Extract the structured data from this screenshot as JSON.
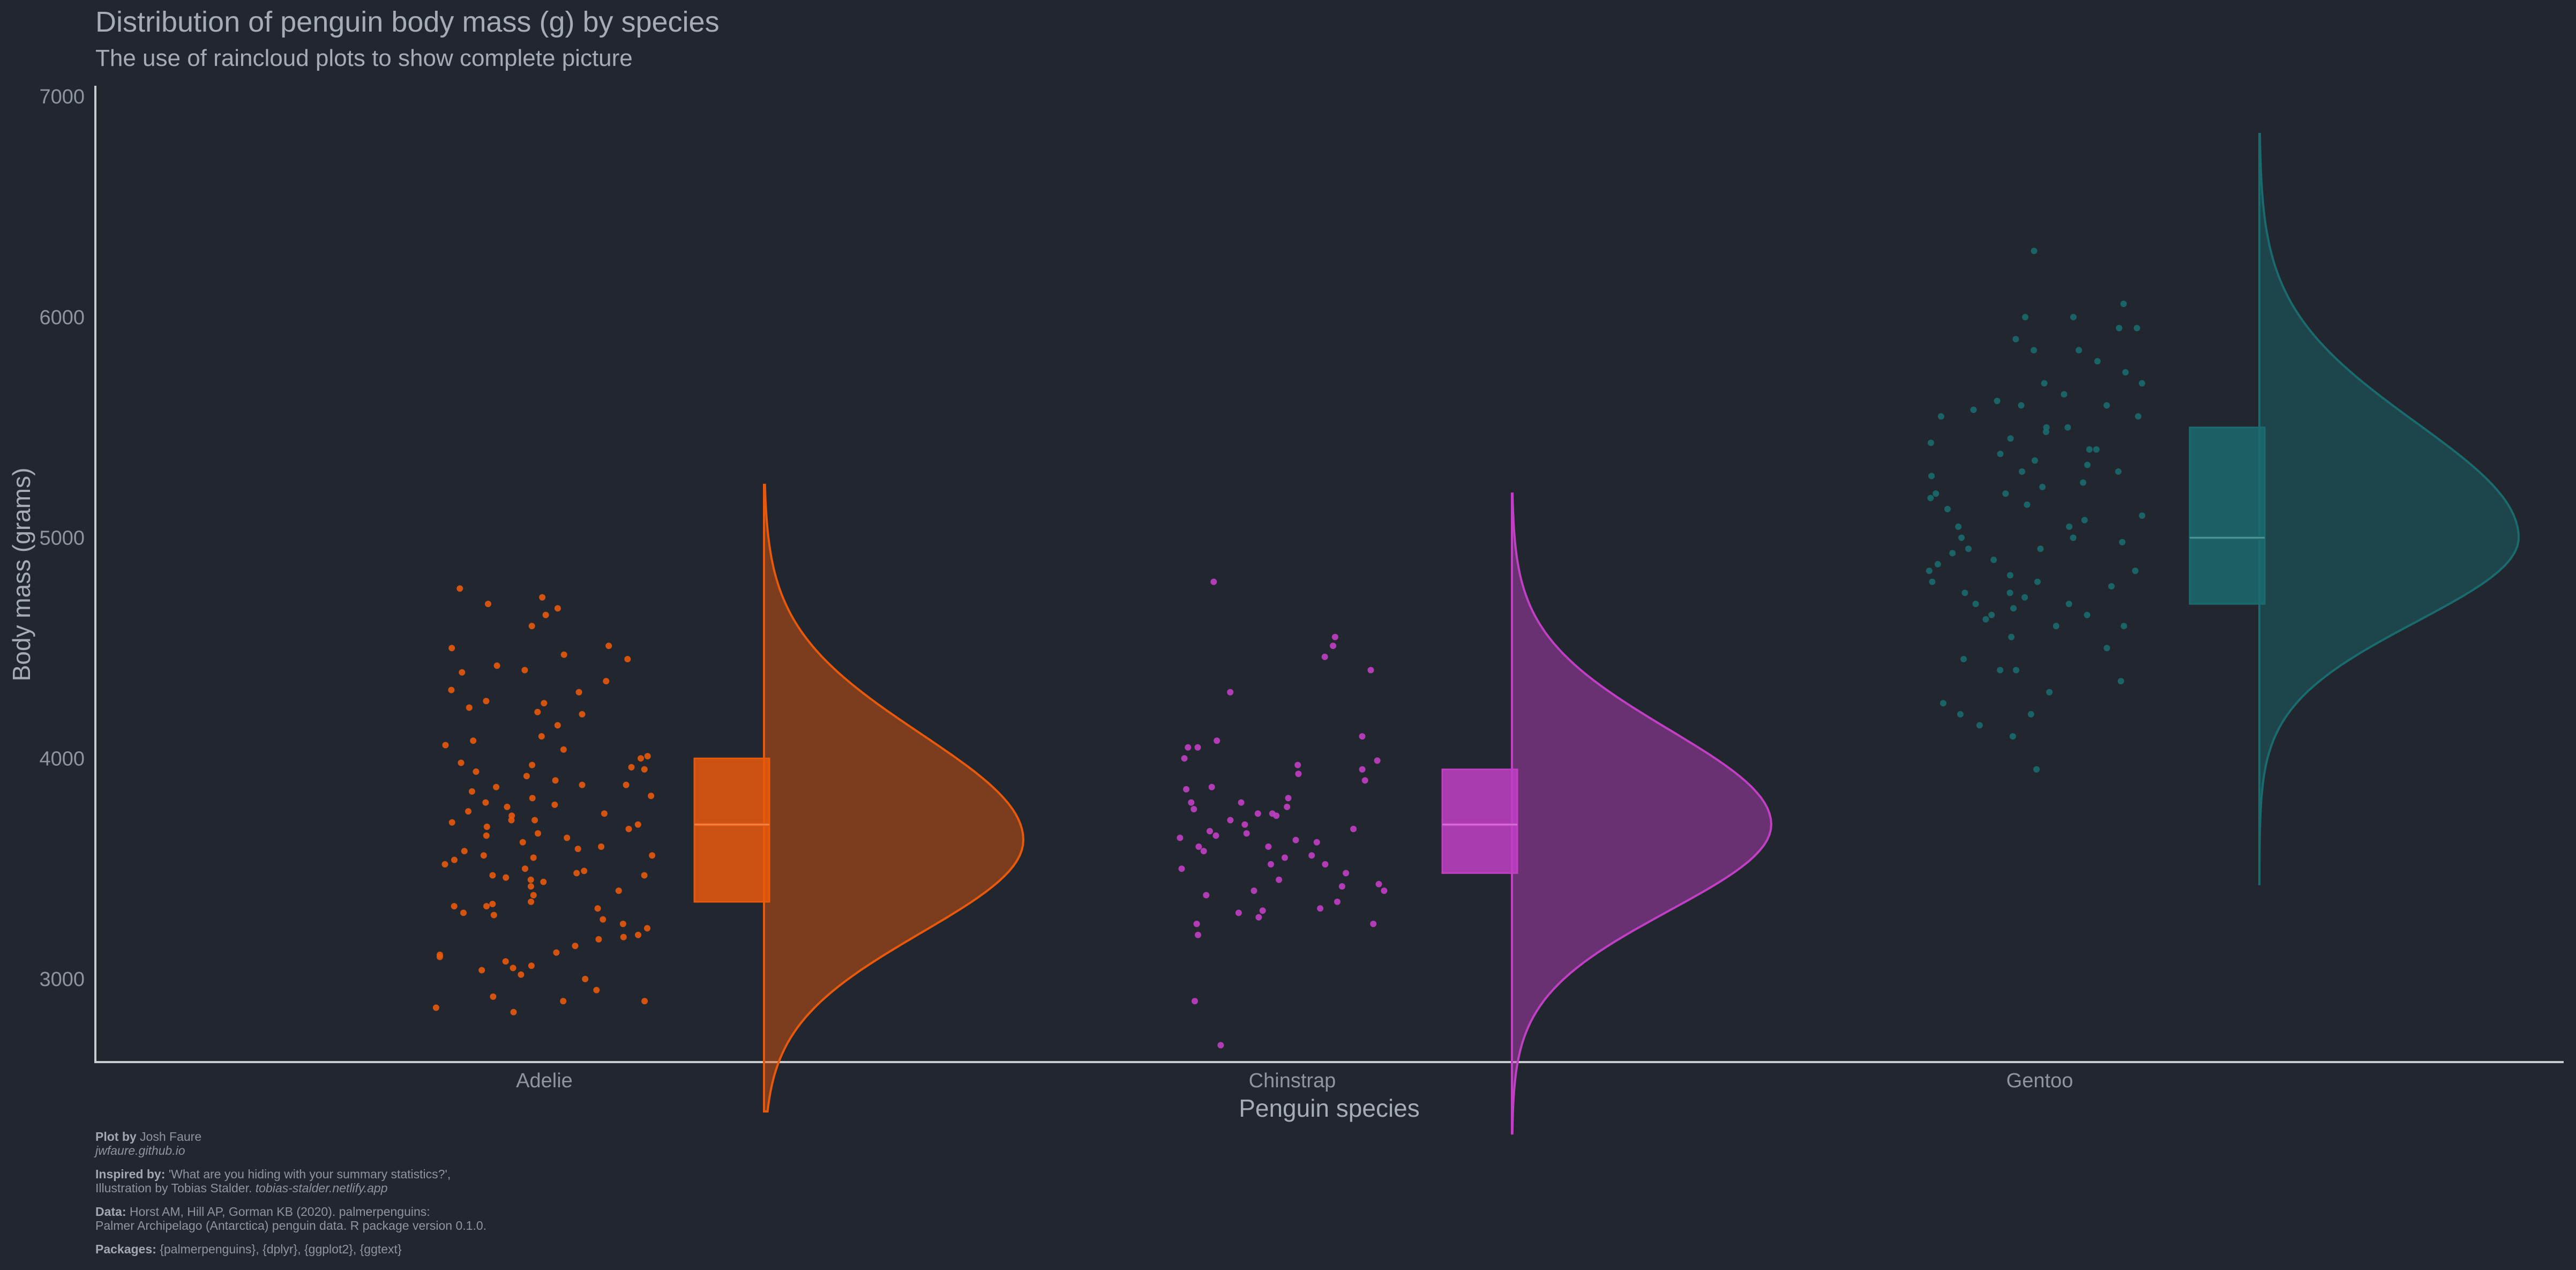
{
  "chart_data": {
    "type": "raincloud",
    "title": "Distribution of penguin body mass (g) by species",
    "subtitle": "The use of raincloud plots to show complete picture",
    "xlabel": "Penguin species",
    "ylabel": "Body mass (grams)",
    "ylim": [
      2100,
      7050
    ],
    "yticks": [
      3000,
      4000,
      5000,
      6000,
      7000
    ],
    "grid": false,
    "categories": [
      "Adelie",
      "Chinstrap",
      "Gentoo"
    ],
    "series": [
      {
        "name": "Adelie",
        "color": "#e8590c",
        "box": {
          "q1": 3350,
          "median": 3700,
          "q3": 4000
        },
        "density": {
          "min": 2400,
          "max": 5240,
          "mode": 3630,
          "sd_low": 420,
          "sd_high": 480
        },
        "points": [
          4730,
          4680,
          4770,
          4700,
          4600,
          4650,
          4500,
          4450,
          4470,
          4400,
          4420,
          4350,
          4300,
          4310,
          4250,
          4260,
          4200,
          4230,
          4150,
          4100,
          4080,
          4060,
          4000,
          4010,
          3980,
          3970,
          3950,
          3940,
          3920,
          3900,
          3880,
          3870,
          3850,
          3830,
          3820,
          3800,
          3790,
          3780,
          3760,
          3750,
          3740,
          3720,
          3710,
          3700,
          3690,
          3680,
          3660,
          3650,
          3640,
          3620,
          3600,
          3590,
          3580,
          3560,
          3550,
          3540,
          3520,
          3500,
          3490,
          3480,
          3470,
          3460,
          3450,
          3440,
          3420,
          3400,
          3380,
          3350,
          3340,
          3330,
          3320,
          3300,
          3290,
          3270,
          3250,
          3230,
          3200,
          3190,
          3180,
          3150,
          3120,
          3100,
          3080,
          3050,
          3040,
          3020,
          3000,
          2950,
          2920,
          2900,
          2870,
          2850,
          2900,
          3060,
          3330,
          3560,
          3720,
          3880,
          4040,
          4210,
          4390,
          4510,
          3960,
          3470,
          3110
        ]
      },
      {
        "name": "Chinstrap",
        "color": "#c13fc4",
        "box": {
          "q1": 3480,
          "median": 3700,
          "q3": 3950
        },
        "density": {
          "min": 2300,
          "max": 5200,
          "mode": 3700,
          "sd_low": 390,
          "sd_high": 430
        },
        "points": [
          4800,
          4550,
          4510,
          4460,
          4400,
          4300,
          4100,
          4080,
          4050,
          4050,
          4000,
          3970,
          3950,
          3900,
          3870,
          3820,
          3800,
          3800,
          3780,
          3770,
          3750,
          3720,
          3700,
          3680,
          3670,
          3650,
          3640,
          3620,
          3600,
          3600,
          3580,
          3550,
          3520,
          3500,
          3480,
          3450,
          3420,
          3400,
          3400,
          3350,
          3320,
          3300,
          3280,
          3250,
          3250,
          3200,
          2900,
          2700,
          3660,
          3860,
          3560,
          3740,
          3310,
          3930,
          3430,
          3630,
          3750,
          3380,
          3990,
          3520
        ]
      },
      {
        "name": "Gentoo",
        "color": "#1a6b6e",
        "box": {
          "q1": 4700,
          "median": 5000,
          "q3": 5500
        },
        "density": {
          "min": 3430,
          "max": 6830,
          "mode": 5000,
          "sd_low": 380,
          "sd_high": 520
        },
        "points": [
          6300,
          6060,
          6000,
          6000,
          5950,
          5950,
          5900,
          5850,
          5850,
          5800,
          5750,
          5700,
          5700,
          5650,
          5600,
          5600,
          5550,
          5550,
          5500,
          5500,
          5450,
          5400,
          5400,
          5350,
          5300,
          5300,
          5250,
          5200,
          5200,
          5150,
          5100,
          5050,
          5050,
          5000,
          5000,
          4950,
          4950,
          4900,
          4850,
          4850,
          4800,
          4800,
          4750,
          4750,
          4700,
          4700,
          4650,
          4650,
          4600,
          4600,
          4550,
          4500,
          4450,
          4400,
          4400,
          4350,
          4300,
          4250,
          4200,
          4200,
          4150,
          4100,
          3950,
          5620,
          5180,
          4880,
          5330,
          4730,
          5480,
          4980,
          5130,
          4680,
          5580,
          4830,
          5280,
          4930,
          5080,
          4780,
          5430,
          5230,
          4630,
          5380
        ]
      }
    ]
  },
  "caption": {
    "plot_by_label": "Plot by",
    "plot_by_text": " Josh Faure",
    "plot_by_url": "jwfaure.github.io",
    "inspired_label": "Inspired by:",
    "inspired_text": " 'What are you hiding with your summary statistics?',",
    "inspired_line2": "Illustration by Tobias Stalder. ",
    "inspired_url": "tobias-stalder.netlify.app",
    "data_label": "Data:",
    "data_text": " Horst AM, Hill AP, Gorman KB (2020). palmerpenguins:",
    "data_line2": "Palmer Archipelago (Antarctica) penguin data. R package version 0.1.0.",
    "packages_label": "Packages:",
    "packages_text": " {palmerpenguins}, {dplyr}, {ggplot2}, {ggtext}"
  }
}
